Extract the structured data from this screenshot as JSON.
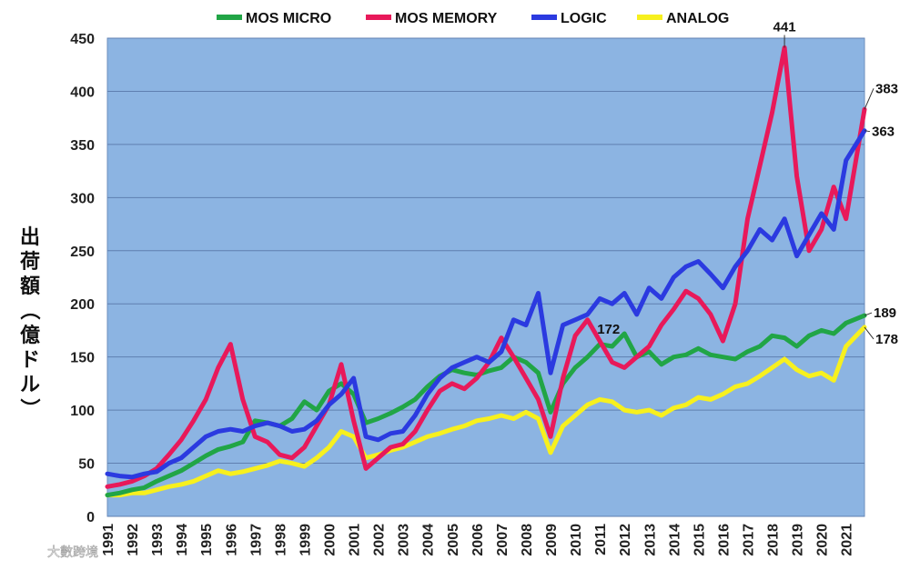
{
  "chart_data": {
    "type": "line",
    "title": "",
    "ylabel": "出荷額（億ドル）",
    "ylim": [
      0,
      450
    ],
    "yticks": [
      0,
      50,
      100,
      150,
      200,
      250,
      300,
      350,
      400,
      450
    ],
    "xlim": [
      1991,
      2021.75
    ],
    "xticks": [
      1991,
      1992,
      1993,
      1994,
      1995,
      1996,
      1997,
      1998,
      1999,
      2000,
      2001,
      2002,
      2003,
      2004,
      2005,
      2006,
      2007,
      2008,
      2009,
      2010,
      2011,
      2012,
      2013,
      2014,
      2015,
      2016,
      2017,
      2018,
      2019,
      2020,
      2021
    ],
    "grid": "horizontal",
    "legend_position": "top",
    "plot_background": "#8cb4e2",
    "series": [
      {
        "name": "MOS MICRO",
        "color": "#21a546",
        "points": [
          [
            1991,
            20
          ],
          [
            1991.5,
            22
          ],
          [
            1992,
            25
          ],
          [
            1992.5,
            27
          ],
          [
            1993,
            33
          ],
          [
            1993.5,
            38
          ],
          [
            1994,
            43
          ],
          [
            1994.5,
            50
          ],
          [
            1995,
            57
          ],
          [
            1995.5,
            63
          ],
          [
            1996,
            66
          ],
          [
            1996.5,
            70
          ],
          [
            1997,
            90
          ],
          [
            1997.5,
            88
          ],
          [
            1998,
            85
          ],
          [
            1998.5,
            92
          ],
          [
            1999,
            108
          ],
          [
            1999.5,
            100
          ],
          [
            2000,
            118
          ],
          [
            2000.5,
            125
          ],
          [
            2001,
            115
          ],
          [
            2001.5,
            88
          ],
          [
            2002,
            92
          ],
          [
            2002.5,
            97
          ],
          [
            2003,
            103
          ],
          [
            2003.5,
            110
          ],
          [
            2004,
            122
          ],
          [
            2004.5,
            132
          ],
          [
            2005,
            138
          ],
          [
            2005.5,
            135
          ],
          [
            2006,
            133
          ],
          [
            2006.5,
            137
          ],
          [
            2007,
            140
          ],
          [
            2007.5,
            150
          ],
          [
            2008,
            145
          ],
          [
            2008.5,
            135
          ],
          [
            2009,
            98
          ],
          [
            2009.5,
            125
          ],
          [
            2010,
            140
          ],
          [
            2010.5,
            150
          ],
          [
            2011,
            162
          ],
          [
            2011.5,
            160
          ],
          [
            2012,
            172
          ],
          [
            2012.5,
            150
          ],
          [
            2013,
            155
          ],
          [
            2013.5,
            143
          ],
          [
            2014,
            150
          ],
          [
            2014.5,
            152
          ],
          [
            2015,
            158
          ],
          [
            2015.5,
            152
          ],
          [
            2016,
            150
          ],
          [
            2016.5,
            148
          ],
          [
            2017,
            155
          ],
          [
            2017.5,
            160
          ],
          [
            2018,
            170
          ],
          [
            2018.5,
            168
          ],
          [
            2019,
            160
          ],
          [
            2019.5,
            170
          ],
          [
            2020,
            175
          ],
          [
            2020.5,
            172
          ],
          [
            2021,
            182
          ],
          [
            2021.75,
            189
          ]
        ]
      },
      {
        "name": "MOS MEMORY",
        "color": "#e8195a",
        "points": [
          [
            1991,
            28
          ],
          [
            1991.5,
            30
          ],
          [
            1992,
            33
          ],
          [
            1992.5,
            38
          ],
          [
            1993,
            45
          ],
          [
            1993.5,
            58
          ],
          [
            1994,
            72
          ],
          [
            1994.5,
            90
          ],
          [
            1995,
            110
          ],
          [
            1995.5,
            140
          ],
          [
            1996,
            162
          ],
          [
            1996.5,
            110
          ],
          [
            1997,
            75
          ],
          [
            1997.5,
            70
          ],
          [
            1998,
            58
          ],
          [
            1998.5,
            55
          ],
          [
            1999,
            65
          ],
          [
            1999.5,
            85
          ],
          [
            2000,
            105
          ],
          [
            2000.5,
            143
          ],
          [
            2001,
            90
          ],
          [
            2001.5,
            45
          ],
          [
            2002,
            55
          ],
          [
            2002.5,
            65
          ],
          [
            2003,
            68
          ],
          [
            2003.5,
            80
          ],
          [
            2004,
            100
          ],
          [
            2004.5,
            118
          ],
          [
            2005,
            125
          ],
          [
            2005.5,
            120
          ],
          [
            2006,
            130
          ],
          [
            2006.5,
            145
          ],
          [
            2007,
            168
          ],
          [
            2007.5,
            150
          ],
          [
            2008,
            130
          ],
          [
            2008.5,
            110
          ],
          [
            2009,
            75
          ],
          [
            2009.5,
            130
          ],
          [
            2010,
            170
          ],
          [
            2010.5,
            185
          ],
          [
            2011,
            165
          ],
          [
            2011.5,
            145
          ],
          [
            2012,
            140
          ],
          [
            2012.5,
            150
          ],
          [
            2013,
            160
          ],
          [
            2013.5,
            180
          ],
          [
            2014,
            195
          ],
          [
            2014.5,
            212
          ],
          [
            2015,
            205
          ],
          [
            2015.5,
            190
          ],
          [
            2016,
            165
          ],
          [
            2016.5,
            200
          ],
          [
            2017,
            280
          ],
          [
            2017.5,
            330
          ],
          [
            2018,
            380
          ],
          [
            2018.5,
            441
          ],
          [
            2019,
            320
          ],
          [
            2019.5,
            250
          ],
          [
            2020,
            270
          ],
          [
            2020.5,
            310
          ],
          [
            2021,
            280
          ],
          [
            2021.75,
            383
          ]
        ]
      },
      {
        "name": "LOGIC",
        "color": "#2b3ae0",
        "points": [
          [
            1991,
            40
          ],
          [
            1991.5,
            38
          ],
          [
            1992,
            37
          ],
          [
            1992.5,
            40
          ],
          [
            1993,
            42
          ],
          [
            1993.5,
            50
          ],
          [
            1994,
            55
          ],
          [
            1994.5,
            65
          ],
          [
            1995,
            75
          ],
          [
            1995.5,
            80
          ],
          [
            1996,
            82
          ],
          [
            1996.5,
            80
          ],
          [
            1997,
            85
          ],
          [
            1997.5,
            88
          ],
          [
            1998,
            85
          ],
          [
            1998.5,
            80
          ],
          [
            1999,
            82
          ],
          [
            1999.5,
            90
          ],
          [
            2000,
            105
          ],
          [
            2000.5,
            115
          ],
          [
            2001,
            130
          ],
          [
            2001.5,
            75
          ],
          [
            2002,
            72
          ],
          [
            2002.5,
            78
          ],
          [
            2003,
            80
          ],
          [
            2003.5,
            95
          ],
          [
            2004,
            115
          ],
          [
            2004.5,
            130
          ],
          [
            2005,
            140
          ],
          [
            2005.5,
            145
          ],
          [
            2006,
            150
          ],
          [
            2006.5,
            145
          ],
          [
            2007,
            155
          ],
          [
            2007.5,
            185
          ],
          [
            2008,
            180
          ],
          [
            2008.5,
            210
          ],
          [
            2009,
            135
          ],
          [
            2009.5,
            180
          ],
          [
            2010,
            185
          ],
          [
            2010.5,
            190
          ],
          [
            2011,
            205
          ],
          [
            2011.5,
            200
          ],
          [
            2012,
            210
          ],
          [
            2012.5,
            190
          ],
          [
            2013,
            215
          ],
          [
            2013.5,
            205
          ],
          [
            2014,
            225
          ],
          [
            2014.5,
            235
          ],
          [
            2015,
            240
          ],
          [
            2015.5,
            228
          ],
          [
            2016,
            215
          ],
          [
            2016.5,
            235
          ],
          [
            2017,
            250
          ],
          [
            2017.5,
            270
          ],
          [
            2018,
            260
          ],
          [
            2018.5,
            280
          ],
          [
            2019,
            245
          ],
          [
            2019.5,
            265
          ],
          [
            2020,
            285
          ],
          [
            2020.5,
            270
          ],
          [
            2021,
            335
          ],
          [
            2021.75,
            363
          ]
        ]
      },
      {
        "name": "ANALOG",
        "color": "#f7f01e",
        "points": [
          [
            1991,
            20
          ],
          [
            1991.5,
            20
          ],
          [
            1992,
            22
          ],
          [
            1992.5,
            22
          ],
          [
            1993,
            25
          ],
          [
            1993.5,
            28
          ],
          [
            1994,
            30
          ],
          [
            1994.5,
            33
          ],
          [
            1995,
            38
          ],
          [
            1995.5,
            43
          ],
          [
            1996,
            40
          ],
          [
            1996.5,
            42
          ],
          [
            1997,
            45
          ],
          [
            1997.5,
            48
          ],
          [
            1998,
            52
          ],
          [
            1998.5,
            50
          ],
          [
            1999,
            47
          ],
          [
            1999.5,
            55
          ],
          [
            2000,
            65
          ],
          [
            2000.5,
            80
          ],
          [
            2001,
            75
          ],
          [
            2001.5,
            55
          ],
          [
            2002,
            58
          ],
          [
            2002.5,
            62
          ],
          [
            2003,
            65
          ],
          [
            2003.5,
            70
          ],
          [
            2004,
            75
          ],
          [
            2004.5,
            78
          ],
          [
            2005,
            82
          ],
          [
            2005.5,
            85
          ],
          [
            2006,
            90
          ],
          [
            2006.5,
            92
          ],
          [
            2007,
            95
          ],
          [
            2007.5,
            92
          ],
          [
            2008,
            98
          ],
          [
            2008.5,
            92
          ],
          [
            2009,
            60
          ],
          [
            2009.5,
            85
          ],
          [
            2010,
            95
          ],
          [
            2010.5,
            105
          ],
          [
            2011,
            110
          ],
          [
            2011.5,
            108
          ],
          [
            2012,
            100
          ],
          [
            2012.5,
            98
          ],
          [
            2013,
            100
          ],
          [
            2013.5,
            95
          ],
          [
            2014,
            102
          ],
          [
            2014.5,
            105
          ],
          [
            2015,
            112
          ],
          [
            2015.5,
            110
          ],
          [
            2016,
            115
          ],
          [
            2016.5,
            122
          ],
          [
            2017,
            125
          ],
          [
            2017.5,
            132
          ],
          [
            2018,
            140
          ],
          [
            2018.5,
            148
          ],
          [
            2019,
            138
          ],
          [
            2019.5,
            132
          ],
          [
            2020,
            135
          ],
          [
            2020.5,
            128
          ],
          [
            2021,
            160
          ],
          [
            2021.75,
            178
          ]
        ]
      }
    ],
    "annotations": [
      {
        "text": "441",
        "series": "MOS MEMORY",
        "x": 2018.5,
        "y": 441
      },
      {
        "text": "383",
        "series": "MOS MEMORY",
        "x": 2021.75,
        "y": 383
      },
      {
        "text": "363",
        "series": "LOGIC",
        "x": 2021.75,
        "y": 363
      },
      {
        "text": "189",
        "series": "MOS MICRO",
        "x": 2021.75,
        "y": 189
      },
      {
        "text": "178",
        "series": "ANALOG",
        "x": 2021.75,
        "y": 178
      },
      {
        "text": "172",
        "series": "MOS MICRO",
        "x": 2012,
        "y": 172
      }
    ]
  },
  "watermark": {
    "text": "大數跨境"
  }
}
